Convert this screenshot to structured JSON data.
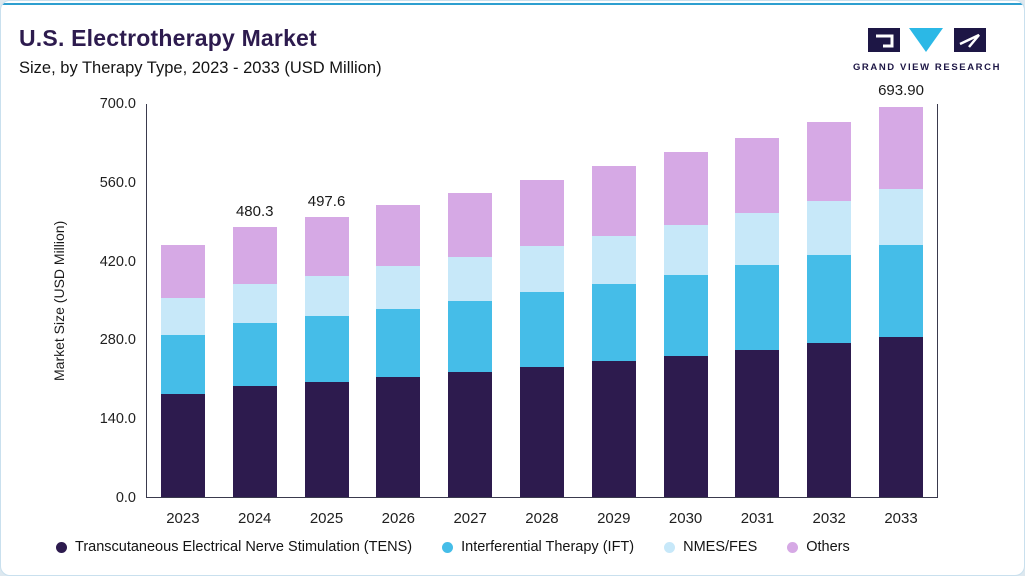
{
  "header": {
    "title": "U.S. Electrotherapy Market",
    "subtitle": "Size, by Therapy Type, 2023 - 2033 (USD Million)",
    "brand": "GRAND VIEW RESEARCH"
  },
  "colors": {
    "accent_line": "#2e9fd0",
    "title": "#2d1b4e",
    "tens": "#2d1b4e",
    "ift": "#45bde8",
    "nmes": "#c7e8f9",
    "others": "#d6a9e5"
  },
  "chart_data": {
    "type": "bar",
    "stacked": true,
    "title": "U.S. Electrotherapy Market Size, by Therapy Type, 2023 - 2033 (USD Million)",
    "xlabel": "",
    "ylabel": "Market Size (USD Million)",
    "ylim": [
      0,
      700
    ],
    "grid": false,
    "legend_position": "bottom",
    "yticks": [
      0,
      140,
      280,
      420,
      560,
      700
    ],
    "ytick_labels": [
      "0.0",
      "140.0",
      "280.0",
      "420.0",
      "560.0",
      "700.0"
    ],
    "categories": [
      "2023",
      "2024",
      "2025",
      "2026",
      "2027",
      "2028",
      "2029",
      "2030",
      "2031",
      "2032",
      "2033"
    ],
    "series": [
      {
        "name": "Transcutaneous Electrical Nerve Stimulation (TENS)",
        "short": "tens",
        "color_key": "tens",
        "values": [
          183.3,
          196.9,
          204.0,
          212.7,
          221.7,
          231.1,
          240.9,
          251.2,
          261.8,
          273.0,
          284.5
        ]
      },
      {
        "name": "Interferential Therapy (IFT)",
        "short": "ift",
        "color_key": "ift",
        "values": [
          105.0,
          112.9,
          116.9,
          121.9,
          127.1,
          132.5,
          138.1,
          144.0,
          150.1,
          156.5,
          163.1
        ]
      },
      {
        "name": "NMES/FES",
        "short": "nmes-fes",
        "color_key": "nmes",
        "values": [
          64.8,
          69.6,
          72.2,
          75.2,
          78.4,
          81.7,
          85.2,
          88.8,
          92.6,
          96.5,
          100.6
        ]
      },
      {
        "name": "Others",
        "short": "others",
        "color_key": "others",
        "values": [
          93.9,
          100.9,
          104.5,
          108.9,
          113.5,
          118.4,
          123.4,
          128.6,
          134.1,
          139.8,
          145.7
        ]
      }
    ],
    "totals": [
      447.0,
      480.3,
      497.6,
      518.7,
      540.7,
      563.7,
      587.6,
      612.6,
      638.6,
      665.8,
      693.9
    ],
    "bar_labels": [
      "",
      "480.3",
      "497.6",
      "",
      "",
      "",
      "",
      "",
      "",
      "",
      "693.90"
    ]
  }
}
